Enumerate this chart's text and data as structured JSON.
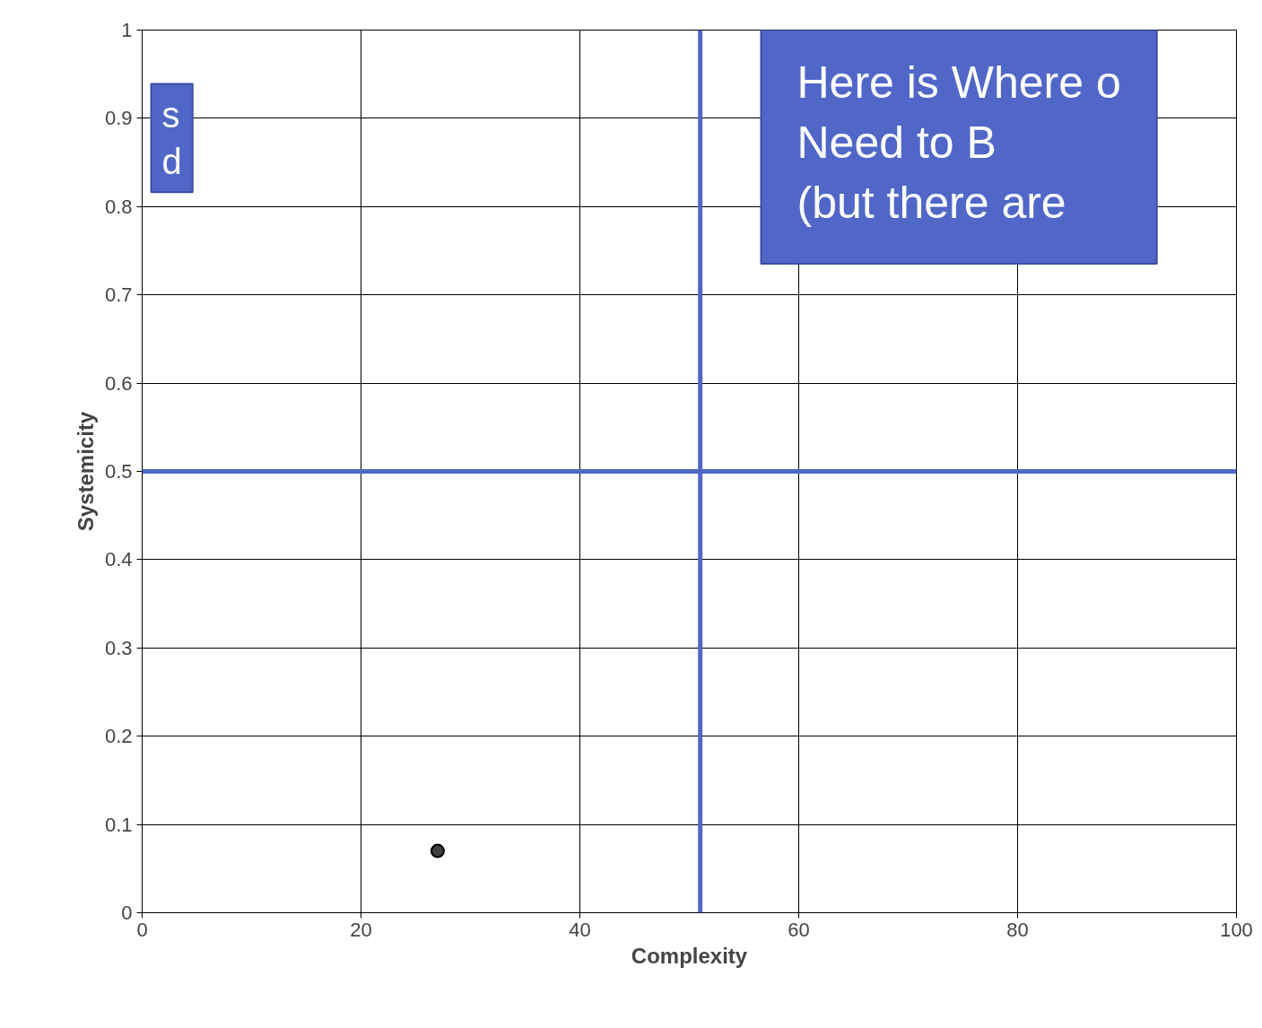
{
  "chart_data": {
    "type": "scatter",
    "xlabel": "Complexity",
    "ylabel": "Systemicity",
    "x": [
      27
    ],
    "values": [
      0.07
    ],
    "color": "#404040",
    "marker": "circle",
    "xlim": [
      0,
      100
    ],
    "ylim": [
      0,
      1
    ],
    "xticks": [
      0,
      20,
      40,
      60,
      80,
      100
    ],
    "yticks": [
      0,
      0.1,
      0.2,
      0.3,
      0.4,
      0.5,
      0.6,
      0.7,
      0.8,
      0.9,
      1
    ],
    "grid": true,
    "ref_lines": [
      {
        "axis": "x",
        "value": 51,
        "color": "#4f67c8"
      },
      {
        "axis": "y",
        "value": 0.5,
        "color": "#4f67c8"
      }
    ],
    "annotations": [
      "Here is Where o\nNeed to B\n(but there are",
      "s\nd"
    ]
  }
}
